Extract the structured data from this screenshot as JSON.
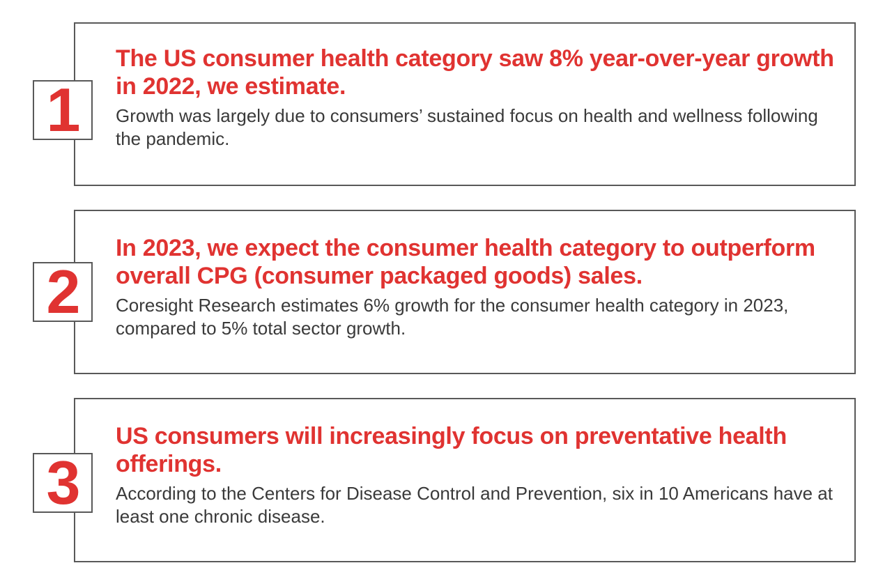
{
  "items": [
    {
      "number": "1",
      "headline": "The US consumer health category saw 8% year-over-year growth in 2022, we estimate.",
      "body": "Growth was largely due to consumers’ sustained focus on health and wellness following the pandemic."
    },
    {
      "number": "2",
      "headline": "In 2023, we expect the consumer health category to outperform overall CPG (consumer packaged goods) sales.",
      "body": "Coresight Research estimates 6% growth for the consumer health category in 2023, compared to 5% total sector growth."
    },
    {
      "number": "3",
      "headline": "US consumers will increasingly focus on preventative health offerings.",
      "body": "According to the Centers for Disease Control and Prevention, six in 10 Americans have at least one chronic disease."
    }
  ],
  "colors": {
    "accent": "#e03331",
    "border": "#595959",
    "body_text": "#3a3a3a"
  }
}
